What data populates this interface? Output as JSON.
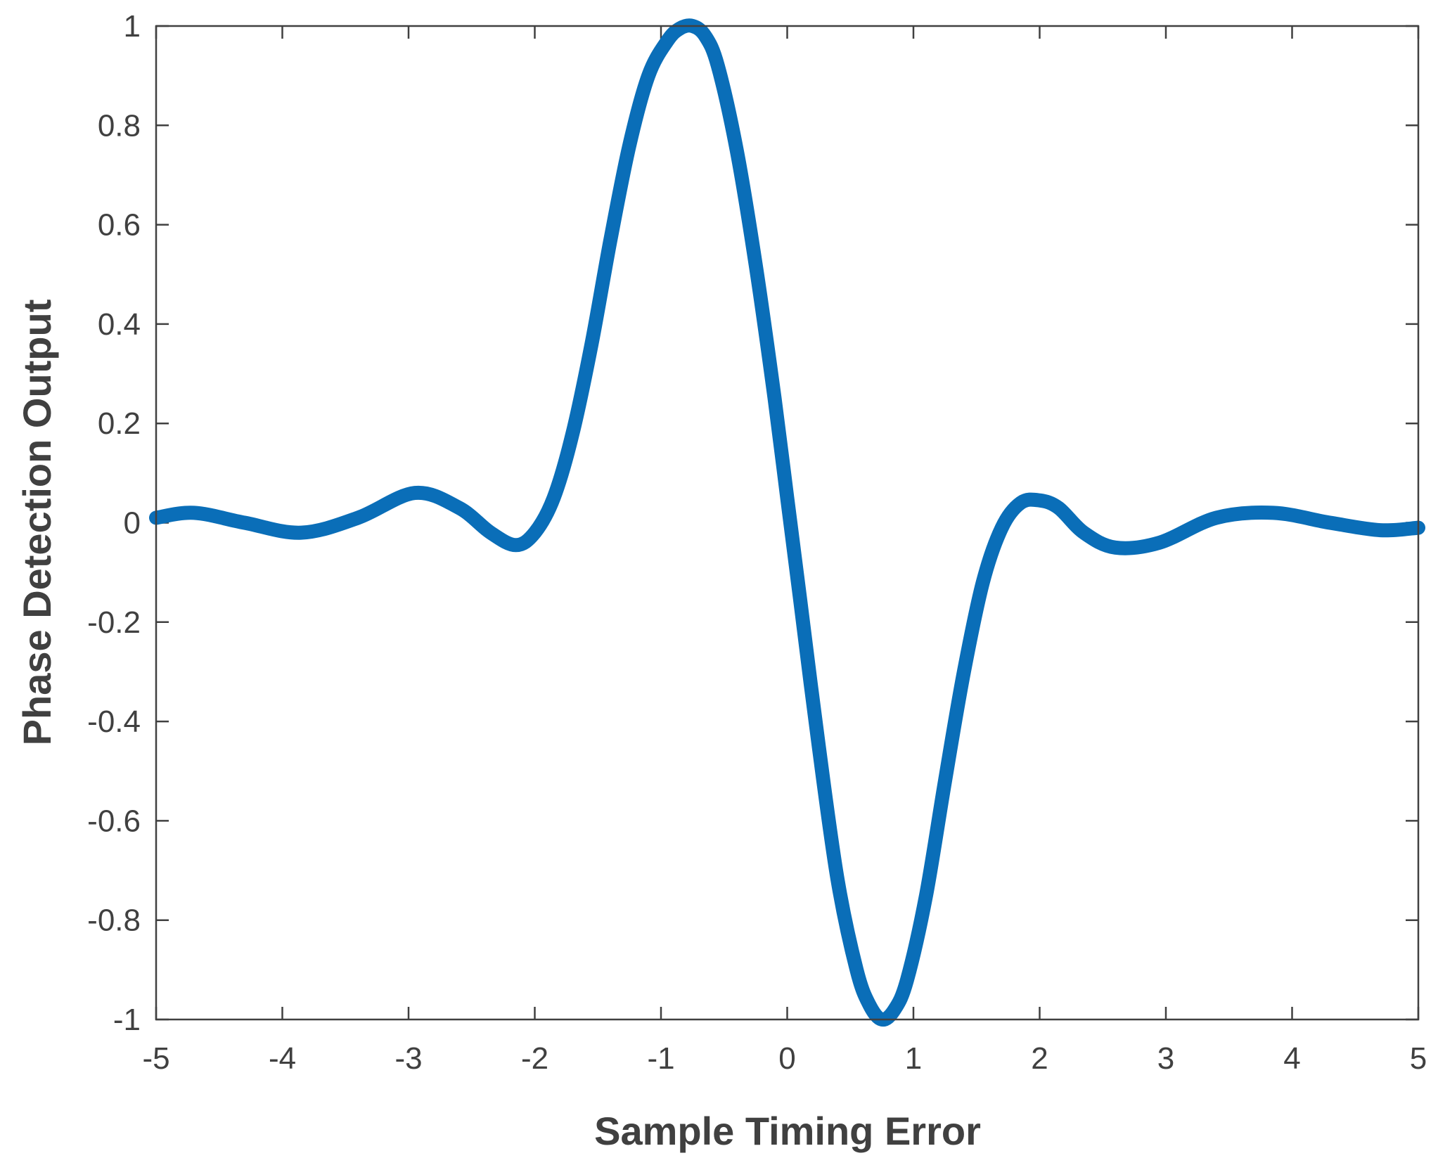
{
  "chart_data": {
    "type": "line",
    "title": "",
    "xlabel": "Sample Timing Error",
    "ylabel": "Phase Detection Output",
    "xlim": [
      -5,
      5
    ],
    "ylim": [
      -1,
      1
    ],
    "x_ticks": [
      -5,
      -4,
      -3,
      -2,
      -1,
      0,
      1,
      2,
      3,
      4,
      5
    ],
    "x_tick_labels": [
      "-5",
      "-4",
      "-3",
      "-2",
      "-1",
      "0",
      "1",
      "2",
      "3",
      "4",
      "5"
    ],
    "y_ticks": [
      1,
      0.8,
      0.6,
      0.4,
      0.2,
      0,
      -0.2,
      -0.4,
      -0.6,
      -0.8,
      -1
    ],
    "y_tick_labels": [
      "1",
      "0.8",
      "0.6",
      "0.4",
      "0.2",
      "0",
      "-0.2",
      "-0.4",
      "-0.6",
      "-0.8",
      "-1"
    ],
    "grid": false,
    "legend": "none",
    "series": [
      {
        "color": "#0A6EB8",
        "x": [
          -5,
          -4.7,
          -4.3,
          -3.85,
          -3.4,
          -2.95,
          -2.6,
          -2.35,
          -2.15,
          -2.0,
          -1.85,
          -1.7,
          -1.55,
          -1.4,
          -1.25,
          -1.1,
          -0.95,
          -0.85,
          -0.75,
          -0.65,
          -0.55,
          -0.4,
          -0.25,
          -0.1,
          0,
          0.1,
          0.25,
          0.4,
          0.55,
          0.65,
          0.75,
          0.85,
          0.95,
          1.1,
          1.25,
          1.4,
          1.55,
          1.7,
          1.85,
          2.0,
          2.15,
          2.35,
          2.6,
          2.95,
          3.4,
          3.85,
          4.3,
          4.7,
          5
        ],
        "y": [
          0.01,
          0.02,
          0.0,
          -0.02,
          0.01,
          0.06,
          0.03,
          -0.02,
          -0.045,
          -0.02,
          0.05,
          0.18,
          0.36,
          0.57,
          0.76,
          0.9,
          0.97,
          0.995,
          1.0,
          0.98,
          0.92,
          0.75,
          0.52,
          0.25,
          0.05,
          -0.15,
          -0.45,
          -0.72,
          -0.9,
          -0.97,
          -1.0,
          -0.98,
          -0.92,
          -0.75,
          -0.52,
          -0.3,
          -0.12,
          -0.01,
          0.04,
          0.045,
          0.03,
          -0.02,
          -0.05,
          -0.04,
          0.01,
          0.02,
          0.0,
          -0.015,
          -0.01
        ]
      }
    ]
  }
}
